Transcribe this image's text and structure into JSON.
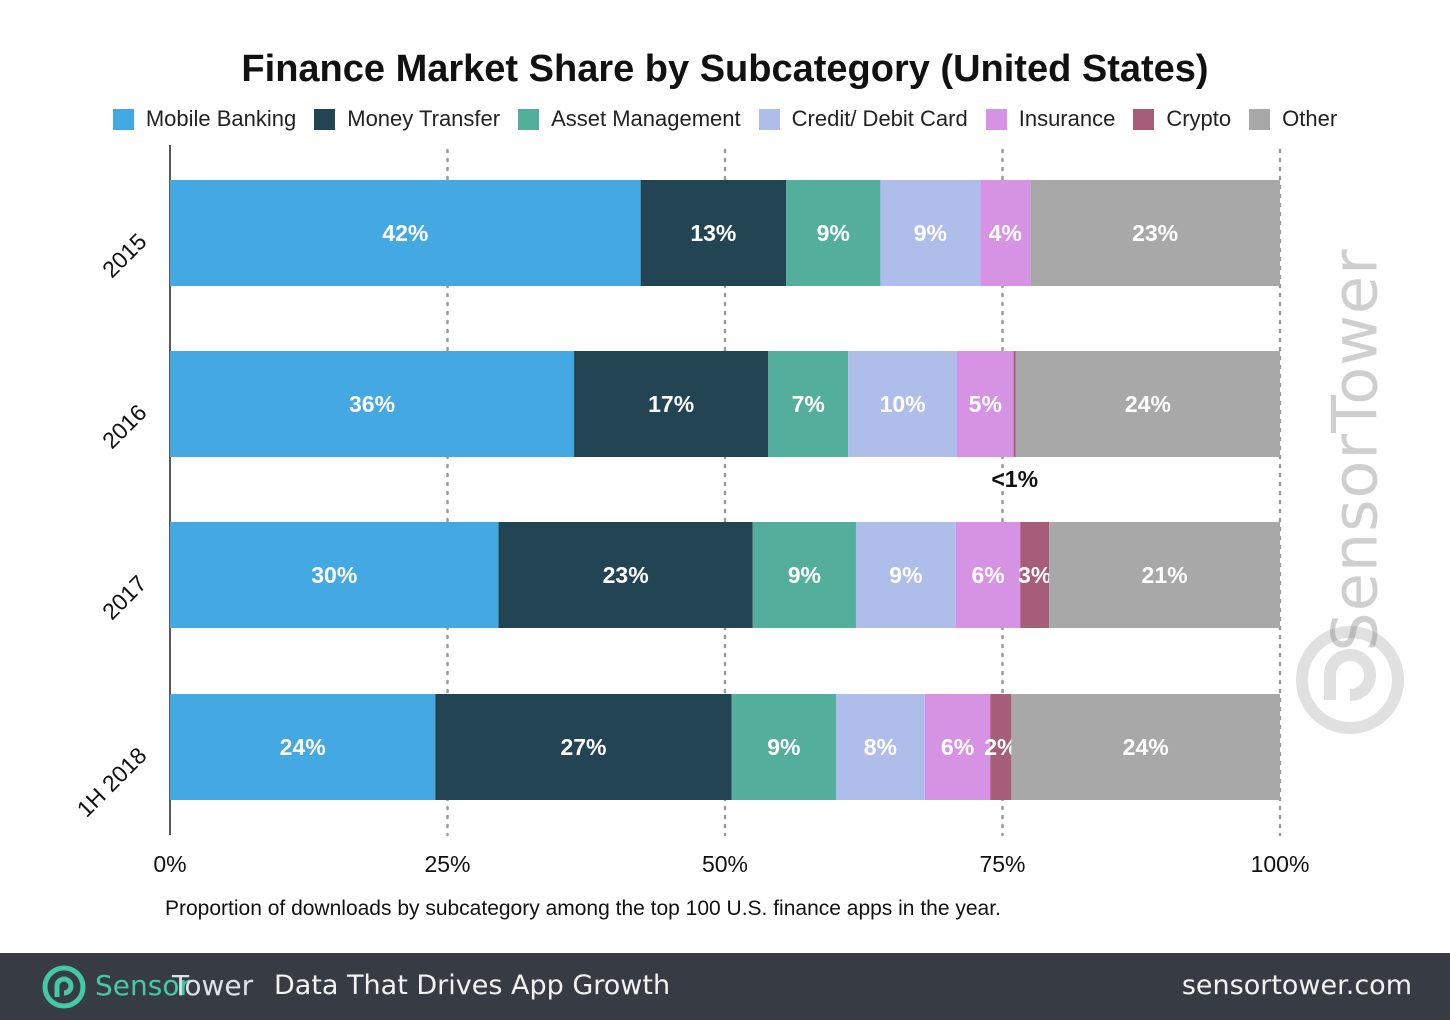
{
  "chart_data": {
    "type": "bar",
    "orientation": "horizontal-stacked-100",
    "title": "Finance Market Share by Subcategory (United States)",
    "categories": [
      "2015",
      "2016",
      "2017",
      "1H 2018"
    ],
    "xlim": [
      0,
      100
    ],
    "x_ticks": [
      "0%",
      "25%",
      "50%",
      "75%",
      "100%"
    ],
    "grid": "vertical-dotted",
    "legend_placement": "top",
    "series": [
      {
        "name": "Mobile Banking",
        "color": "#44a8e3",
        "values": [
          42.4,
          36.4,
          29.6,
          23.9
        ],
        "labels": [
          "42%",
          "36%",
          "30%",
          "24%"
        ]
      },
      {
        "name": "Money Transfer",
        "color": "#234553",
        "values": [
          13.1,
          17.5,
          22.9,
          26.7
        ],
        "labels": [
          "13%",
          "17%",
          "23%",
          "27%"
        ]
      },
      {
        "name": "Asset Management",
        "color": "#53ae9c",
        "values": [
          8.5,
          7.2,
          9.3,
          9.4
        ],
        "labels": [
          "9%",
          "7%",
          "9%",
          "9%"
        ]
      },
      {
        "name": "Credit/ Debit Card",
        "color": "#aebde9",
        "values": [
          9.0,
          9.8,
          9.0,
          8.0
        ],
        "labels": [
          "9%",
          "10%",
          "9%",
          "8%"
        ]
      },
      {
        "name": "Insurance",
        "color": "#d793e3",
        "values": [
          4.5,
          5.1,
          5.8,
          5.9
        ],
        "labels": [
          "4%",
          "5%",
          "6%",
          "6%"
        ]
      },
      {
        "name": "Crypto",
        "color": "#a65e78",
        "values": [
          0,
          0.2,
          2.6,
          1.9
        ],
        "labels": [
          "",
          "<1%",
          "3%",
          "2%"
        ]
      },
      {
        "name": "Other",
        "color": "#a8a8a8",
        "values": [
          22.5,
          23.8,
          20.8,
          24.2
        ],
        "labels": [
          "23%",
          "24%",
          "21%",
          "24%"
        ]
      }
    ],
    "annotations": [
      "<1%"
    ]
  },
  "footnote": "Proportion of downloads by subcategory among the top 100 U.S. finance apps in the year.",
  "watermark": {
    "text": "SensorTower",
    "icon": "sensortower-logo-icon"
  },
  "footer": {
    "brand_part1": "Sensor",
    "brand_part2": "Tower",
    "tagline": "Data That Drives App Growth",
    "url": "sensortower.com",
    "background": "#373c44",
    "brand_color": "#44c9a8"
  }
}
